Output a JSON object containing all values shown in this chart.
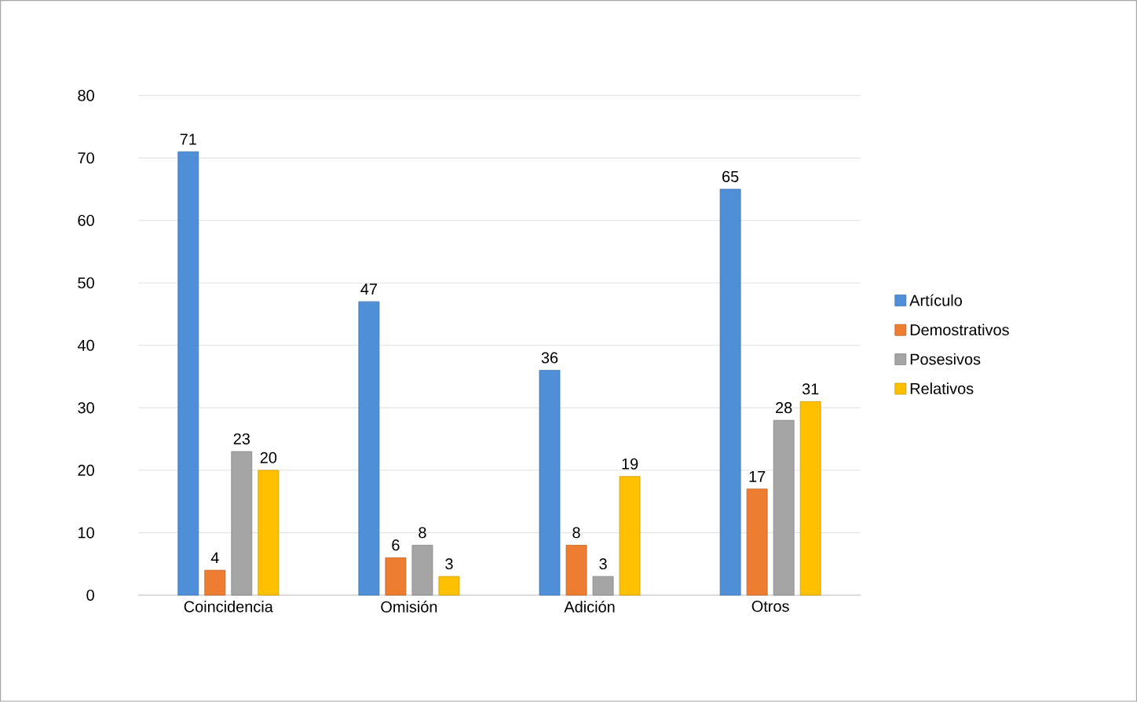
{
  "chart_data": {
    "type": "bar",
    "categories": [
      "Coincidencia",
      "Omisión",
      "Adición",
      "Otros"
    ],
    "series": [
      {
        "name": "Artículo",
        "color": "#4f8fd8",
        "values": [
          71,
          47,
          36,
          65
        ]
      },
      {
        "name": "Demostrativos",
        "color": "#ed7d31",
        "values": [
          4,
          6,
          8,
          17
        ]
      },
      {
        "name": "Posesivos",
        "color": "#a5a5a5",
        "values": [
          23,
          8,
          3,
          28
        ]
      },
      {
        "name": "Relativos",
        "color": "#ffc000",
        "values": [
          20,
          3,
          19,
          31
        ]
      }
    ],
    "ylim": [
      0,
      80
    ],
    "yticks": [
      0,
      10,
      20,
      30,
      40,
      50,
      60,
      70,
      80
    ],
    "grid": "y",
    "legend": "right",
    "data_labels": true
  }
}
